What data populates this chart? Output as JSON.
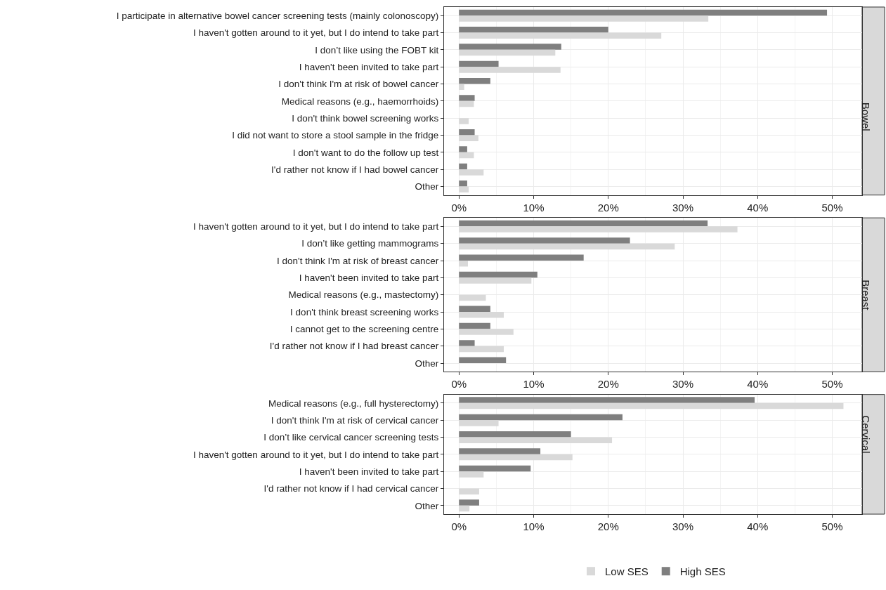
{
  "chart_data": [
    {
      "type": "bar",
      "orientation": "horizontal",
      "title": "Bowel",
      "categories": [
        "I participate in alternative bowel cancer screening tests (mainly colonoscopy)",
        "I haven't gotten around to it yet, but I do intend to take part",
        "I don’t like using the FOBT kit",
        "I haven't been invited to take part",
        "I don't think I'm at risk of bowel cancer",
        "Medical reasons (e.g., haemorrhoids)",
        "I don't think bowel screening works",
        "I did not want to store a stool sample in the fridge",
        "I don't want to do the follow up test",
        "I'd rather not know if I had bowel cancer",
        "Other"
      ],
      "series": [
        {
          "name": "Low SES",
          "color": "#d9d9d9",
          "values": [
            33.4,
            27.1,
            12.9,
            13.6,
            0.7,
            2.0,
            1.3,
            2.6,
            2.0,
            3.3,
            1.3
          ]
        },
        {
          "name": "High SES",
          "color": "#7f7f7f",
          "values": [
            49.3,
            20.0,
            13.7,
            5.3,
            4.2,
            2.1,
            0,
            2.1,
            1.1,
            1.1,
            1.1
          ]
        }
      ],
      "xlim": [
        -2,
        54
      ],
      "xticks": [
        {
          "value": 0,
          "label": "0%"
        },
        {
          "value": 10,
          "label": "10%"
        },
        {
          "value": 20,
          "label": "20%"
        },
        {
          "value": 30,
          "label": "30%"
        },
        {
          "value": 40,
          "label": "40%"
        },
        {
          "value": 50,
          "label": "50%"
        }
      ],
      "grid": true,
      "legend": "bottom"
    },
    {
      "type": "bar",
      "orientation": "horizontal",
      "title": "Breast",
      "categories": [
        "I haven't gotten around to it yet, but I do intend to take part",
        "I don’t like getting mammograms",
        "I don't think I'm at risk of breast cancer",
        "I haven't been invited to take part",
        "Medical reasons (e.g., mastectomy)",
        "I don't think breast screening works",
        "I cannot get to the screening centre",
        "I'd rather not know if I had breast cancer",
        "Other"
      ],
      "series": [
        {
          "color": "#d9d9d9",
          "values": [
            37.3,
            28.9,
            1.2,
            9.7,
            3.6,
            6.0,
            7.3,
            6.0,
            0
          ]
        },
        {
          "color": "#7f7f7f",
          "values": [
            33.3,
            22.9,
            16.7,
            10.5,
            0,
            4.2,
            4.2,
            2.1,
            6.3
          ]
        }
      ],
      "xlim": [
        -2,
        54
      ],
      "xticks": [
        {
          "value": 0,
          "label": "0%"
        },
        {
          "value": 10,
          "label": "10%"
        },
        {
          "value": 20,
          "label": "20%"
        },
        {
          "value": 30,
          "label": "30%"
        },
        {
          "value": 40,
          "label": "40%"
        },
        {
          "value": 50,
          "label": "50%"
        }
      ],
      "grid": true
    },
    {
      "type": "bar",
      "orientation": "horizontal",
      "title": "Cervical",
      "categories": [
        "Medical reasons (e.g., full hysterectomy)",
        "I don't think I'm at risk of cervical cancer",
        "I don’t like cervical cancer screening tests",
        "I haven't gotten around to it yet, but I do intend to take part",
        "I haven't been invited to take part",
        "I'd rather not know if I had cervical cancer",
        "Other"
      ],
      "series": [
        {
          "color": "#d9d9d9",
          "values": [
            51.5,
            5.3,
            20.5,
            15.2,
            3.3,
            2.7,
            1.4
          ]
        },
        {
          "color": "#7f7f7f",
          "values": [
            39.6,
            21.9,
            15.0,
            10.9,
            9.6,
            0,
            2.7
          ]
        }
      ],
      "xlim": [
        -2,
        54
      ],
      "xticks": [
        {
          "value": 0,
          "label": "0%"
        },
        {
          "value": 10,
          "label": "10%"
        },
        {
          "value": 20,
          "label": "20%"
        },
        {
          "value": 30,
          "label": "30%"
        },
        {
          "value": 40,
          "label": "40%"
        },
        {
          "value": 50,
          "label": "50%"
        }
      ],
      "grid": true
    }
  ]
}
